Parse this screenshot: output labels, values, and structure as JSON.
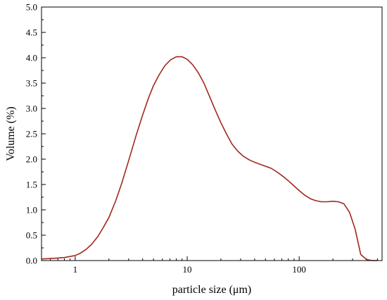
{
  "chart_data": {
    "type": "line",
    "xlabel": "particle size (μm)",
    "ylabel": "Volume (%)",
    "x_scale": "log",
    "xlim": [
      0.5,
      550
    ],
    "ylim": [
      0,
      5
    ],
    "x_ticks": [
      {
        "value": 1,
        "label": "1"
      },
      {
        "value": 10,
        "label": "10"
      },
      {
        "value": 100,
        "label": "100"
      }
    ],
    "y_ticks": [
      {
        "value": 0,
        "label": "0.0"
      },
      {
        "value": 0.5,
        "label": "0.5"
      },
      {
        "value": 1.0,
        "label": "1.0"
      },
      {
        "value": 1.5,
        "label": "1.5"
      },
      {
        "value": 2.0,
        "label": "2.0"
      },
      {
        "value": 2.5,
        "label": "2.5"
      },
      {
        "value": 3.0,
        "label": "3.0"
      },
      {
        "value": 3.5,
        "label": "3.5"
      },
      {
        "value": 4.0,
        "label": "4.0"
      },
      {
        "value": 4.5,
        "label": "4.5"
      },
      {
        "value": 5.0,
        "label": "5.0"
      }
    ],
    "grid": false,
    "line_color": "#a0281e",
    "series": [
      {
        "x": [
          0.5,
          0.6,
          0.7,
          0.8,
          0.9,
          1.0,
          1.1,
          1.25,
          1.4,
          1.6,
          1.8,
          2.0,
          2.3,
          2.6,
          3.0,
          3.5,
          4.0,
          4.5,
          5.0,
          5.6,
          6.3,
          7.1,
          8.0,
          9.0,
          10.0,
          11.2,
          12.6,
          14.1,
          15.8,
          17.8,
          20.0,
          22.4,
          25.1,
          28.2,
          31.6,
          35.5,
          39.8,
          44.7,
          50.1,
          56.2,
          63.1,
          70.8,
          79.4,
          89.1,
          100,
          112,
          126,
          141,
          158,
          178,
          200,
          224,
          251,
          282,
          316,
          355,
          400,
          450,
          500
        ],
        "y": [
          0.03,
          0.04,
          0.05,
          0.06,
          0.08,
          0.1,
          0.14,
          0.22,
          0.32,
          0.48,
          0.67,
          0.85,
          1.18,
          1.52,
          1.97,
          2.47,
          2.87,
          3.2,
          3.45,
          3.66,
          3.84,
          3.96,
          4.02,
          4.02,
          3.97,
          3.86,
          3.7,
          3.5,
          3.24,
          2.97,
          2.72,
          2.5,
          2.3,
          2.16,
          2.06,
          1.99,
          1.94,
          1.9,
          1.86,
          1.82,
          1.75,
          1.67,
          1.58,
          1.48,
          1.38,
          1.29,
          1.22,
          1.18,
          1.16,
          1.16,
          1.17,
          1.16,
          1.12,
          0.95,
          0.62,
          0.12,
          0.02,
          0.0,
          0.0
        ]
      }
    ]
  }
}
